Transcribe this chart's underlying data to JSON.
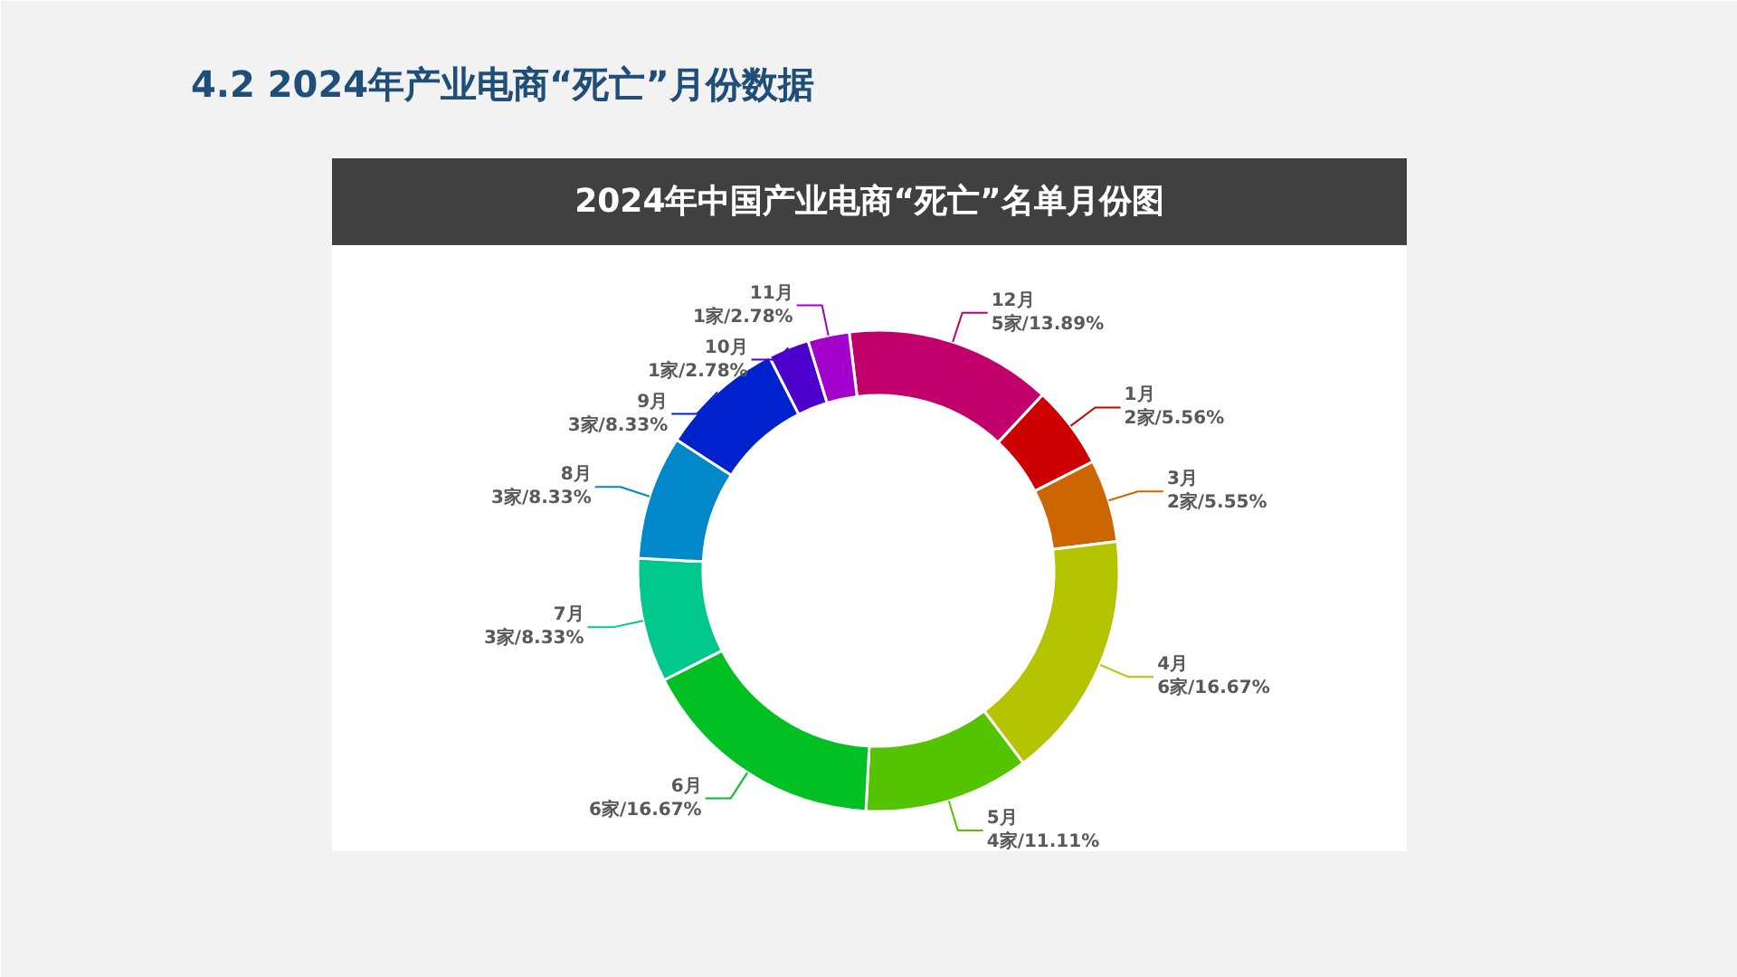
{
  "chart_data": {
    "type": "donut",
    "title": "4.2 2024年产业电商“死亡”月份数据",
    "subtitle": "2024年中国产业电商“死亡”名单月份图",
    "categories": [
      "12月",
      "1月",
      "3月",
      "4月",
      "5月",
      "6月",
      "7月",
      "8月",
      "9月",
      "10月",
      "11月"
    ],
    "values": [
      5,
      2,
      2,
      6,
      4,
      6,
      3,
      3,
      3,
      1,
      1
    ],
    "value_labels": [
      "5家/13.89%",
      "2家/5.56%",
      "2家/5.55%",
      "6家/16.67%",
      "4家/11.11%",
      "6家/16.67%",
      "3家/8.33%",
      "3家/8.33%",
      "3家/8.33%",
      "1家/2.78%",
      "1家/2.78%"
    ],
    "colors": [
      "#c1006b",
      "#cc0000",
      "#cc6600",
      "#b4c400",
      "#55c400",
      "#00c024",
      "#00c88c",
      "#0088c8",
      "#0022cc",
      "#4c00cc",
      "#a400cc"
    ]
  }
}
